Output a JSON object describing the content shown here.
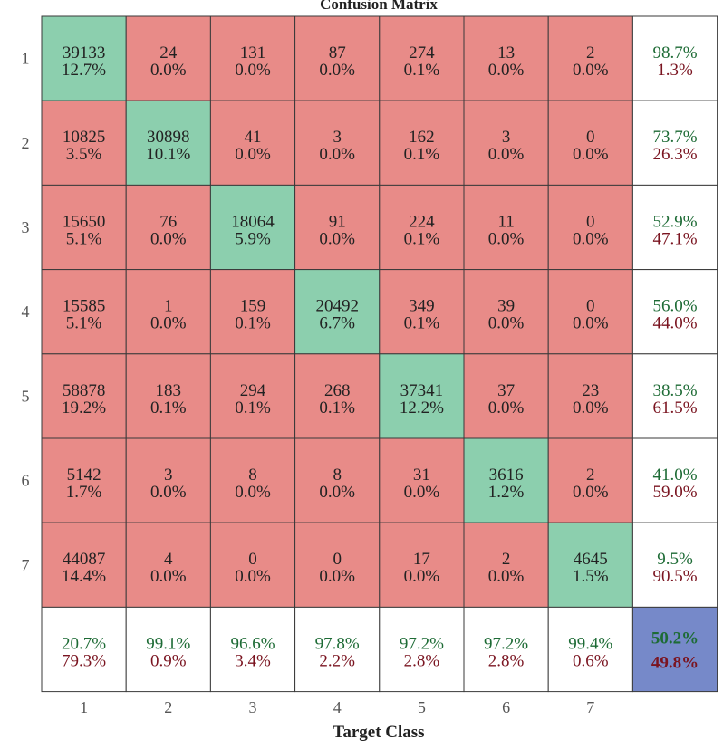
{
  "chart_data": {
    "type": "heatmap",
    "title": "Confusion Matrix",
    "xlabel": "Target Class",
    "ylabel": "",
    "classes": [
      "1",
      "2",
      "3",
      "4",
      "5",
      "6",
      "7"
    ],
    "matrix": [
      {
        "counts": [
          "39133",
          "24",
          "131",
          "87",
          "274",
          "13",
          "2"
        ],
        "percents": [
          "12.7%",
          "0.0%",
          "0.0%",
          "0.0%",
          "0.1%",
          "0.0%",
          "0.0%"
        ],
        "row_summary": [
          "98.7%",
          "1.3%"
        ]
      },
      {
        "counts": [
          "10825",
          "30898",
          "41",
          "3",
          "162",
          "3",
          "0"
        ],
        "percents": [
          "3.5%",
          "10.1%",
          "0.0%",
          "0.0%",
          "0.1%",
          "0.0%",
          "0.0%"
        ],
        "row_summary": [
          "73.7%",
          "26.3%"
        ]
      },
      {
        "counts": [
          "15650",
          "76",
          "18064",
          "91",
          "224",
          "11",
          "0"
        ],
        "percents": [
          "5.1%",
          "0.0%",
          "5.9%",
          "0.0%",
          "0.1%",
          "0.0%",
          "0.0%"
        ],
        "row_summary": [
          "52.9%",
          "47.1%"
        ]
      },
      {
        "counts": [
          "15585",
          "1",
          "159",
          "20492",
          "349",
          "39",
          "0"
        ],
        "percents": [
          "5.1%",
          "0.0%",
          "0.1%",
          "6.7%",
          "0.1%",
          "0.0%",
          "0.0%"
        ],
        "row_summary": [
          "56.0%",
          "44.0%"
        ]
      },
      {
        "counts": [
          "58878",
          "183",
          "294",
          "268",
          "37341",
          "37",
          "23"
        ],
        "percents": [
          "19.2%",
          "0.1%",
          "0.1%",
          "0.1%",
          "12.2%",
          "0.0%",
          "0.0%"
        ],
        "row_summary": [
          "38.5%",
          "61.5%"
        ]
      },
      {
        "counts": [
          "5142",
          "3",
          "8",
          "8",
          "31",
          "3616",
          "2"
        ],
        "percents": [
          "1.7%",
          "0.0%",
          "0.0%",
          "0.0%",
          "0.0%",
          "1.2%",
          "0.0%"
        ],
        "row_summary": [
          "41.0%",
          "59.0%"
        ]
      },
      {
        "counts": [
          "44087",
          "4",
          "0",
          "0",
          "17",
          "2",
          "4645"
        ],
        "percents": [
          "14.4%",
          "0.0%",
          "0.0%",
          "0.0%",
          "0.0%",
          "0.0%",
          "1.5%"
        ],
        "row_summary": [
          "9.5%",
          "90.5%"
        ]
      }
    ],
    "column_summary": [
      [
        "20.7%",
        "79.3%"
      ],
      [
        "99.1%",
        "0.9%"
      ],
      [
        "96.6%",
        "3.4%"
      ],
      [
        "97.8%",
        "2.2%"
      ],
      [
        "97.2%",
        "2.8%"
      ],
      [
        "97.2%",
        "2.8%"
      ],
      [
        "99.4%",
        "0.6%"
      ]
    ],
    "overall": [
      "50.2%",
      "49.8%"
    ],
    "colors": {
      "correct": "#8ccfae",
      "incorrect": "#e88b88",
      "summary": "#ffffff",
      "overall": "#7689c9",
      "positive_text": "#1d6b35",
      "negative_text": "#7a1420",
      "grid": "#3a3a3a"
    }
  }
}
